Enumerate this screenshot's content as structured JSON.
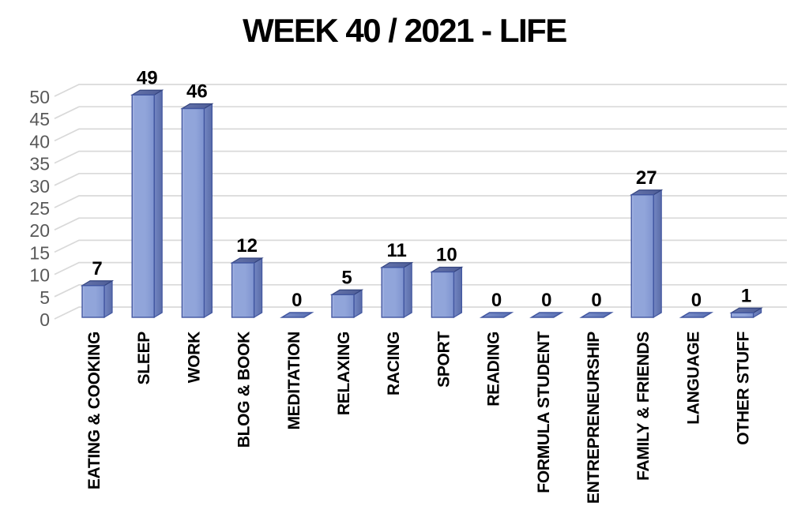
{
  "chart_data": {
    "type": "bar",
    "variant": "3d-column",
    "title": "WEEK 40 / 2021 - LIFE",
    "categories": [
      "EATING & COOKING",
      "SLEEP",
      "WORK",
      "BLOG & BOOK",
      "MEDITATION",
      "RELAXING",
      "RACING",
      "SPORT",
      "READING",
      "FORMULA STUDENT",
      "ENTREPRENEURSHIP",
      "FAMILY & FRIENDS",
      "LANGUAGE",
      "OTHER STUFF"
    ],
    "values": [
      7,
      49,
      46,
      12,
      0,
      5,
      11,
      10,
      0,
      0,
      0,
      27,
      0,
      1
    ],
    "data_labels": [
      "7",
      "49",
      "46",
      "12",
      "0",
      "5",
      "11",
      "10",
      "0",
      "0",
      "0",
      "27",
      "0",
      "1"
    ],
    "xlabel": "",
    "ylabel": "",
    "ylim": [
      0,
      50
    ],
    "ytick_step": 5,
    "yticks": [
      0,
      5,
      10,
      15,
      20,
      25,
      30,
      35,
      40,
      45,
      50
    ],
    "grid": true,
    "legend_position": "none",
    "category_label_rotation_degrees": 90,
    "colors": {
      "front_left": "#ACBAE6",
      "front_mid": "#91A5DA",
      "front_right": "#7E93CF",
      "side_left": "#7386C2",
      "side_right": "#5A6CA8",
      "top_left": "#6473AA",
      "top_right": "#4E5D97",
      "flat_left": "#7A8EC9",
      "flat_right": "#5A70B2",
      "bar_border": "#4156A0",
      "top_border": "#35457F",
      "gridline": "#D9D9D9",
      "axis_label": "#595959",
      "value_label": "#000000",
      "category_label": "#000000",
      "title": "#000000",
      "background": "#FFFFFF"
    }
  }
}
